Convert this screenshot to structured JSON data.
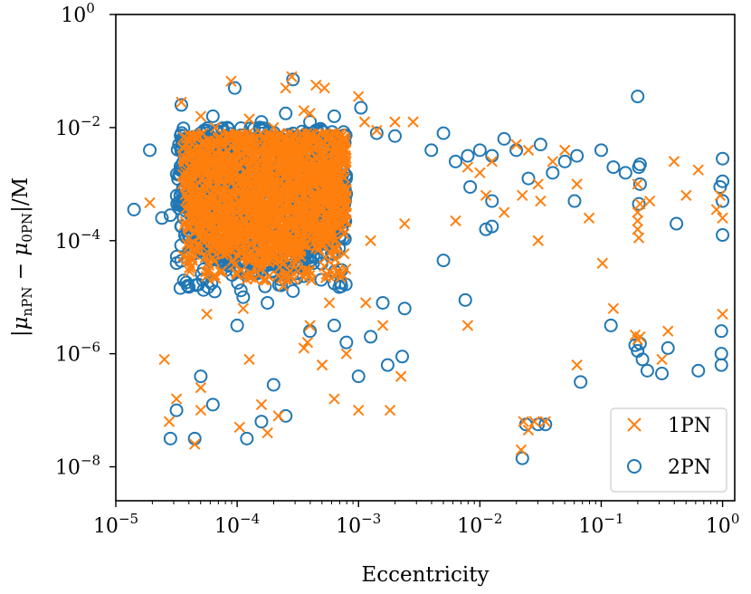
{
  "chart_data": {
    "type": "scatter",
    "title": "",
    "xlabel": "Eccentricity",
    "ylabel": "|μ_nPN − μ_0PN|/M",
    "ylabel_parts": {
      "open": "|",
      "mu1": "μ",
      "sub1": "nPN",
      "minus": " − ",
      "mu2": "μ",
      "sub2": "0PN",
      "close": "|/M"
    },
    "xscale": "log",
    "yscale": "log",
    "xlim_exp": [
      -5,
      0.1
    ],
    "ylim_exp": [
      -8.6,
      0
    ],
    "x_ticks": [
      {
        "base": "10",
        "exp": "−5",
        "value": -5
      },
      {
        "base": "10",
        "exp": "−4",
        "value": -4
      },
      {
        "base": "10",
        "exp": "−3",
        "value": -3
      },
      {
        "base": "10",
        "exp": "−2",
        "value": -2
      },
      {
        "base": "10",
        "exp": "−1",
        "value": -1
      },
      {
        "base": "10",
        "exp": "0",
        "value": 0
      }
    ],
    "y_ticks": [
      {
        "base": "10",
        "exp": "0",
        "value": 0
      },
      {
        "base": "10",
        "exp": "−2",
        "value": -2
      },
      {
        "base": "10",
        "exp": "−4",
        "value": -4
      },
      {
        "base": "10",
        "exp": "−6",
        "value": -6
      },
      {
        "base": "10",
        "exp": "−8",
        "value": -8
      }
    ],
    "legend_position": "lower-right",
    "series": [
      {
        "name": "1PN",
        "marker": "x",
        "color": "#ff7f0e",
        "points_log10": [
          [
            -4.72,
            -3.33
          ],
          [
            -4.46,
            -1.55
          ],
          [
            -4.3,
            -1.8
          ],
          [
            -4.18,
            -2.0
          ],
          [
            -4.05,
            -1.18
          ],
          [
            -3.9,
            -1.85
          ],
          [
            -3.7,
            -2.0
          ],
          [
            -3.55,
            -1.1
          ],
          [
            -3.45,
            -1.7
          ],
          [
            -3.28,
            -1.3
          ],
          [
            -3.0,
            -1.45
          ],
          [
            -2.95,
            -1.9
          ],
          [
            -2.85,
            -2.05
          ],
          [
            -2.7,
            -1.9
          ],
          [
            -2.55,
            -1.9
          ],
          [
            -2.2,
            -3.65
          ],
          [
            -2.1,
            -2.7
          ],
          [
            -2.0,
            -2.8
          ],
          [
            -1.95,
            -3.2
          ],
          [
            -1.9,
            -2.6
          ],
          [
            -1.8,
            -3.5
          ],
          [
            -1.7,
            -2.3
          ],
          [
            -1.65,
            -3.2
          ],
          [
            -1.6,
            -2.4
          ],
          [
            -1.52,
            -4.0
          ],
          [
            -1.52,
            -3.0
          ],
          [
            -1.5,
            -3.3
          ],
          [
            -1.4,
            -2.6
          ],
          [
            -1.3,
            -2.4
          ],
          [
            -1.2,
            -3.0
          ],
          [
            -1.1,
            -3.6
          ],
          [
            -0.7,
            -3.0
          ],
          [
            -0.6,
            -3.3
          ],
          [
            -0.4,
            -2.6
          ],
          [
            -0.3,
            -3.2
          ],
          [
            -0.2,
            -2.75
          ],
          [
            -0.05,
            -3.45
          ],
          [
            -0.02,
            -3.2
          ],
          [
            0.0,
            -3.6
          ],
          [
            -0.7,
            -3.65
          ],
          [
            -0.7,
            -3.8
          ],
          [
            -0.69,
            -3.95
          ],
          [
            -0.7,
            -3.5
          ],
          [
            -0.68,
            -3.35
          ],
          [
            -0.99,
            -4.4
          ],
          [
            -0.9,
            -5.2
          ],
          [
            -0.72,
            -5.67
          ],
          [
            -0.7,
            -5.75
          ],
          [
            -0.68,
            -5.7
          ],
          [
            -0.45,
            -5.6
          ],
          [
            -0.5,
            -6.1
          ],
          [
            0.0,
            -5.3
          ],
          [
            -1.2,
            -6.2
          ],
          [
            -1.64,
            -7.2
          ],
          [
            -1.6,
            -7.35
          ],
          [
            -1.55,
            -7.2
          ],
          [
            -1.46,
            -7.2
          ],
          [
            -1.66,
            -7.7
          ],
          [
            -2.62,
            -3.7
          ],
          [
            -2.1,
            -5.5
          ],
          [
            -3.62,
            -4.8
          ],
          [
            -2.9,
            -4.0
          ],
          [
            -3.9,
            -6.1
          ],
          [
            -3.8,
            -6.9
          ],
          [
            -3.66,
            -7.1
          ],
          [
            -3.75,
            -7.4
          ],
          [
            -3.7,
            -4.2
          ],
          [
            -3.8,
            -4.5
          ],
          [
            -3.95,
            -5.2
          ],
          [
            -4.3,
            -7.0
          ],
          [
            -4.3,
            -6.6
          ],
          [
            -4.5,
            -6.8
          ],
          [
            -4.56,
            -7.2
          ],
          [
            -4.35,
            -7.6
          ],
          [
            -3.98,
            -7.3
          ],
          [
            -2.94,
            -5.1
          ],
          [
            -3.24,
            -5.1
          ],
          [
            -3.4,
            -5.5
          ],
          [
            -3.45,
            -5.9
          ],
          [
            -3.2,
            -6.8
          ],
          [
            -3.3,
            -6.2
          ],
          [
            -3.1,
            -6.0
          ],
          [
            -3.0,
            -7.0
          ],
          [
            -4.2,
            -4.3
          ],
          [
            -4.25,
            -5.3
          ],
          [
            -4.6,
            -6.1
          ],
          [
            -3.35,
            -1.25
          ],
          [
            -3.4,
            -1.75
          ],
          [
            -3.6,
            -1.3
          ],
          [
            -3.42,
            -5.8
          ],
          [
            -2.74,
            -7.0
          ],
          [
            -2.8,
            -5.5
          ],
          [
            -2.65,
            -6.4
          ]
        ],
        "cluster": {
          "x_log10_range": [
            -4.45,
            -3.1
          ],
          "y_log10_range": [
            -4.7,
            -2.1
          ],
          "count": 1600,
          "seed": 11
        }
      },
      {
        "name": "2PN",
        "marker": "o",
        "color": "#1f77b4",
        "points_log10": [
          [
            -4.85,
            -3.45
          ],
          [
            -4.72,
            -2.4
          ],
          [
            -4.55,
            -3.55
          ],
          [
            -4.62,
            -3.6
          ],
          [
            -4.46,
            -1.6
          ],
          [
            -4.3,
            -2.1
          ],
          [
            -4.2,
            -1.8
          ],
          [
            -4.02,
            -1.3
          ],
          [
            -3.8,
            -1.9
          ],
          [
            -3.6,
            -1.75
          ],
          [
            -3.54,
            -1.15
          ],
          [
            -3.4,
            -1.9
          ],
          [
            -3.3,
            -2.2
          ],
          [
            -3.2,
            -1.8
          ],
          [
            -2.98,
            -1.65
          ],
          [
            -2.85,
            -2.1
          ],
          [
            -2.7,
            -2.15
          ],
          [
            -2.4,
            -2.4
          ],
          [
            -2.3,
            -2.1
          ],
          [
            -2.2,
            -2.6
          ],
          [
            -2.1,
            -2.5
          ],
          [
            -2.0,
            -2.4
          ],
          [
            -1.9,
            -2.5
          ],
          [
            -1.8,
            -2.2
          ],
          [
            -1.7,
            -2.4
          ],
          [
            -1.6,
            -2.9
          ],
          [
            -1.5,
            -2.3
          ],
          [
            -1.4,
            -2.8
          ],
          [
            -1.3,
            -2.6
          ],
          [
            -1.22,
            -3.3
          ],
          [
            -1.2,
            -2.5
          ],
          [
            -1.0,
            -2.4
          ],
          [
            -0.9,
            -2.7
          ],
          [
            -0.8,
            -2.8
          ],
          [
            -0.7,
            -1.45
          ],
          [
            -0.69,
            -2.7
          ],
          [
            -0.68,
            -2.65
          ],
          [
            -0.68,
            -3.0
          ],
          [
            -0.69,
            -3.35
          ],
          [
            0.0,
            -2.55
          ],
          [
            0.0,
            -2.95
          ],
          [
            -0.02,
            -3.05
          ],
          [
            0.0,
            -3.3
          ],
          [
            0.0,
            -3.9
          ],
          [
            -2.08,
            -3.05
          ],
          [
            -1.95,
            -3.8
          ],
          [
            -1.9,
            -3.3
          ],
          [
            -2.12,
            -5.05
          ],
          [
            -0.72,
            -5.85
          ],
          [
            -0.7,
            -5.95
          ],
          [
            -0.68,
            -5.82
          ],
          [
            -0.66,
            -6.1
          ],
          [
            -0.62,
            -6.3
          ],
          [
            -0.45,
            -5.9
          ],
          [
            -0.5,
            -6.35
          ],
          [
            -0.01,
            -5.6
          ],
          [
            -0.01,
            -6.0
          ],
          [
            -0.01,
            -6.2
          ],
          [
            -0.92,
            -5.5
          ],
          [
            -1.17,
            -6.5
          ],
          [
            -1.62,
            -7.25
          ],
          [
            -1.52,
            -7.25
          ],
          [
            -1.46,
            -7.25
          ],
          [
            -1.65,
            -7.85
          ],
          [
            -3.44,
            -4.05
          ],
          [
            -3.4,
            -5.6
          ],
          [
            -3.7,
            -6.55
          ],
          [
            -3.8,
            -7.2
          ],
          [
            -3.92,
            -7.5
          ],
          [
            -4.5,
            -7.0
          ],
          [
            -4.55,
            -7.5
          ],
          [
            -4.35,
            -7.5
          ],
          [
            -4.2,
            -6.9
          ],
          [
            -4.3,
            -6.4
          ],
          [
            -3.6,
            -7.1
          ],
          [
            -3.0,
            -6.4
          ],
          [
            -2.76,
            -6.2
          ],
          [
            -2.64,
            -6.05
          ],
          [
            -2.9,
            -5.7
          ],
          [
            -3.1,
            -5.8
          ],
          [
            -3.2,
            -5.5
          ],
          [
            -2.8,
            -5.1
          ],
          [
            -2.62,
            -5.2
          ],
          [
            -4.0,
            -5.5
          ],
          [
            -3.95,
            -5.0
          ],
          [
            -3.75,
            -5.1
          ],
          [
            -3.4,
            -4.3
          ],
          [
            -1.9,
            -3.75
          ],
          [
            -0.38,
            -3.7
          ],
          [
            -0.2,
            -6.3
          ],
          [
            -2.3,
            -4.35
          ]
        ],
        "cluster": {
          "x_log10_range": [
            -4.5,
            -3.1
          ],
          "y_log10_range": [
            -4.9,
            -2.0
          ],
          "count": 1100,
          "seed": 7
        }
      }
    ]
  }
}
